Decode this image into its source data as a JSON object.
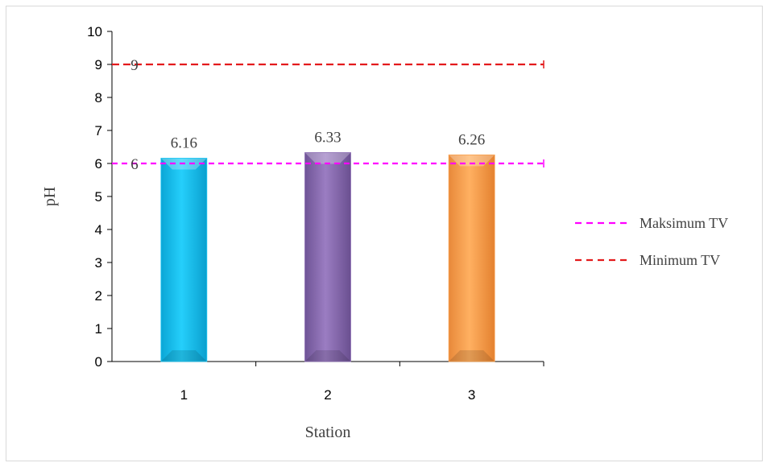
{
  "chart_data": {
    "type": "bar",
    "title": "",
    "xlabel": "Station",
    "ylabel": "pH",
    "categories": [
      "1",
      "2",
      "3"
    ],
    "values": [
      6.16,
      6.33,
      6.26
    ],
    "value_labels": [
      "6.16",
      "6.33",
      "6.26"
    ],
    "bar_colors": [
      "#1ec8f5",
      "#8e6fb5",
      "#f8a04d"
    ],
    "ylim": [
      0,
      10
    ],
    "yticks": [
      "0",
      "1",
      "2",
      "3",
      "4",
      "5",
      "6",
      "7",
      "8",
      "9",
      "10"
    ],
    "grid": false,
    "legend_position": "right",
    "reference_lines": [
      {
        "name": "Maksimum TV",
        "value": 6,
        "label": "6",
        "color": "#ff00ff",
        "style": "dashed"
      },
      {
        "name": "Minimum TV",
        "value": 9,
        "label": "9",
        "color": "#e31a1c",
        "style": "dashed"
      }
    ]
  }
}
